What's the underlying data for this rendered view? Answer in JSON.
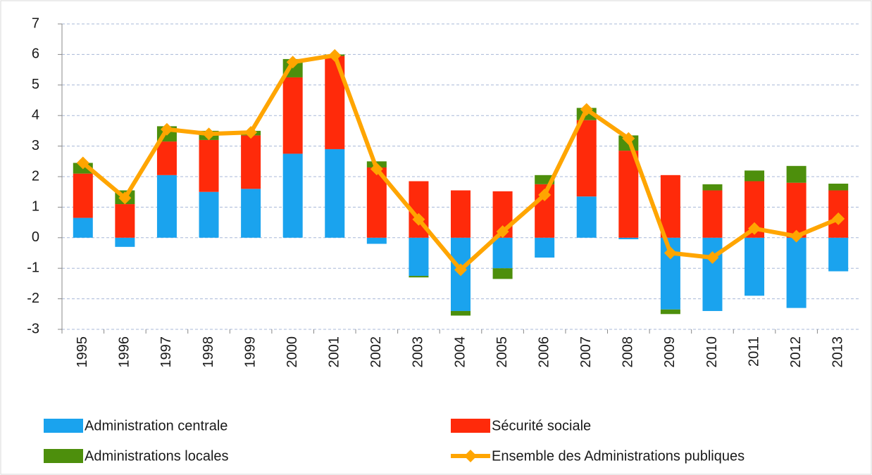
{
  "chart_data": {
    "type": "bar",
    "stacked": true,
    "grid": true,
    "categories": [
      "1995",
      "1996",
      "1997",
      "1998",
      "1999",
      "2000",
      "2001",
      "2002",
      "2003",
      "2004",
      "2005",
      "2006",
      "2007",
      "2008",
      "2009",
      "2010",
      "2011",
      "2012",
      "2013"
    ],
    "ylim": [
      -3,
      7
    ],
    "yticks": [
      -3,
      -2,
      -1,
      0,
      1,
      2,
      3,
      4,
      5,
      6,
      7
    ],
    "series": [
      {
        "name": "Administration centrale",
        "color": "#1aa3ee",
        "type": "bar",
        "values": [
          0.65,
          -0.3,
          2.05,
          1.5,
          1.6,
          2.75,
          2.9,
          -0.2,
          -1.25,
          -2.4,
          -1.0,
          -0.65,
          1.35,
          -0.05,
          -2.35,
          -2.4,
          -1.9,
          -2.3,
          -1.1
        ]
      },
      {
        "name": "Sécurité sociale",
        "color": "#ff2a0a",
        "type": "bar",
        "values": [
          1.45,
          1.1,
          1.1,
          1.7,
          1.75,
          2.5,
          3.05,
          2.3,
          1.85,
          1.55,
          1.52,
          1.75,
          2.5,
          2.85,
          2.05,
          1.55,
          1.85,
          1.8,
          1.55
        ]
      },
      {
        "name": "Administrations locales",
        "color": "#4d8f0c",
        "type": "bar",
        "values": [
          0.35,
          0.45,
          0.5,
          0.3,
          0.15,
          0.6,
          0.05,
          0.2,
          -0.05,
          -0.15,
          -0.35,
          0.3,
          0.4,
          0.5,
          -0.15,
          0.2,
          0.35,
          0.55,
          0.22
        ]
      },
      {
        "name": "Ensemble des Administrations publiques",
        "color": "#ffa500",
        "type": "line",
        "values": [
          2.45,
          1.3,
          3.55,
          3.4,
          3.45,
          5.75,
          5.97,
          2.25,
          0.6,
          -1.05,
          0.2,
          1.4,
          4.2,
          3.25,
          -0.5,
          -0.65,
          0.3,
          0.05,
          0.62
        ]
      }
    ]
  }
}
